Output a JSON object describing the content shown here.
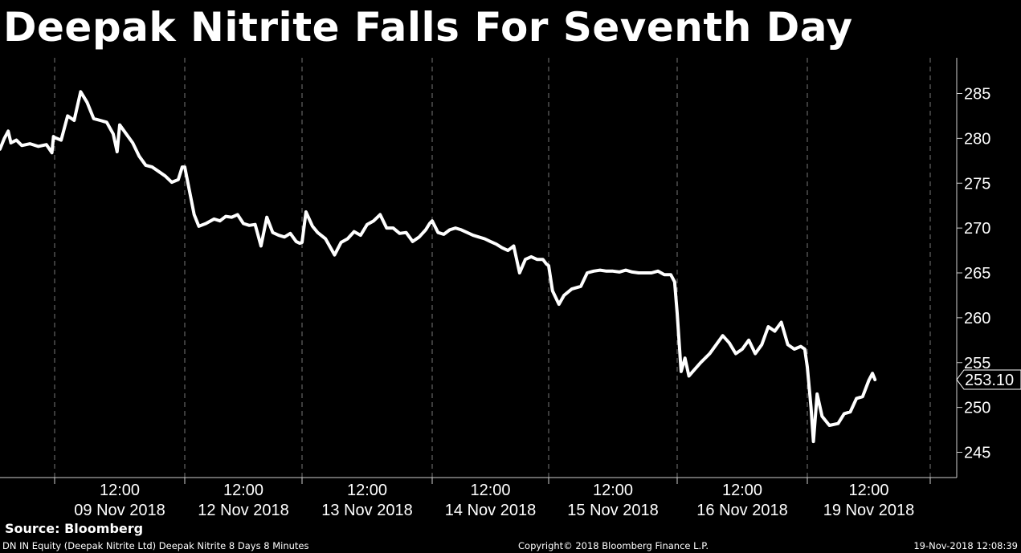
{
  "title": "Deepak Nitrite Falls For Seventh Day",
  "footer": {
    "source": "Source: Bloomberg",
    "security": "DN IN Equity (Deepak Nitrite Ltd) Deepak Nitrite 8 Days 8 Minutes",
    "copyright": "Copyright© 2018 Bloomberg Finance L.P.",
    "timestamp": "19-Nov-2018 12:08:39"
  },
  "colors": {
    "background": "#000000",
    "line": "#ffffff",
    "grid": "#777777"
  },
  "chart_data": {
    "type": "line",
    "title": "Deepak Nitrite Falls For Seventh Day",
    "xlabel": "",
    "ylabel": "",
    "ylim": [
      242,
      290
    ],
    "y_ticks": [
      245,
      250,
      255,
      260,
      265,
      270,
      275,
      280,
      285
    ],
    "y_axis_position": "right",
    "last_price_label": "253.10",
    "x_tick_labels": [
      {
        "time": "12:00",
        "date": "09 Nov 2018"
      },
      {
        "time": "12:00",
        "date": "12 Nov 2018"
      },
      {
        "time": "12:00",
        "date": "13 Nov 2018"
      },
      {
        "time": "12:00",
        "date": "14 Nov 2018"
      },
      {
        "time": "12:00",
        "date": "15 Nov 2018"
      },
      {
        "time": "12:00",
        "date": "16 Nov 2018"
      },
      {
        "time": "12:00",
        "date": "19 Nov 2018"
      }
    ],
    "grid": "vertical dashed at session boundaries",
    "series": [
      {
        "values": [
          [
            0.0,
            278.8
          ],
          [
            0.08,
            280.0
          ],
          [
            0.15,
            280.8
          ],
          [
            0.2,
            279.5
          ],
          [
            0.3,
            279.8
          ],
          [
            0.4,
            279.2
          ],
          [
            0.55,
            279.4
          ],
          [
            0.7,
            279.1
          ],
          [
            0.85,
            279.3
          ],
          [
            0.95,
            278.4
          ],
          [
            0.98,
            280.2
          ],
          [
            1.0,
            280.1
          ],
          [
            1.05,
            279.8
          ],
          [
            1.1,
            282.5
          ],
          [
            1.15,
            282.0
          ],
          [
            1.2,
            285.2
          ],
          [
            1.25,
            284.0
          ],
          [
            1.3,
            282.2
          ],
          [
            1.35,
            282.0
          ],
          [
            1.4,
            281.8
          ],
          [
            1.45,
            280.5
          ],
          [
            1.48,
            278.5
          ],
          [
            1.5,
            281.5
          ],
          [
            1.55,
            280.5
          ],
          [
            1.6,
            279.5
          ],
          [
            1.65,
            278.0
          ],
          [
            1.7,
            277.0
          ],
          [
            1.75,
            276.8
          ],
          [
            1.8,
            276.3
          ],
          [
            1.85,
            275.8
          ],
          [
            1.9,
            275.1
          ],
          [
            1.95,
            275.4
          ],
          [
            1.98,
            276.8
          ],
          [
            2.0,
            276.8
          ],
          [
            2.05,
            273.5
          ],
          [
            2.08,
            271.5
          ],
          [
            2.12,
            270.2
          ],
          [
            2.18,
            270.5
          ],
          [
            2.25,
            271.0
          ],
          [
            2.3,
            270.8
          ],
          [
            2.35,
            271.3
          ],
          [
            2.4,
            271.2
          ],
          [
            2.45,
            271.5
          ],
          [
            2.5,
            270.5
          ],
          [
            2.55,
            270.3
          ],
          [
            2.6,
            270.4
          ],
          [
            2.65,
            268.0
          ],
          [
            2.7,
            271.2
          ],
          [
            2.75,
            269.5
          ],
          [
            2.8,
            269.2
          ],
          [
            2.85,
            269.0
          ],
          [
            2.9,
            269.4
          ],
          [
            2.95,
            268.5
          ],
          [
            2.98,
            268.3
          ],
          [
            3.0,
            268.4
          ],
          [
            3.03,
            271.8
          ],
          [
            3.08,
            270.2
          ],
          [
            3.12,
            269.5
          ],
          [
            3.18,
            268.8
          ],
          [
            3.25,
            267.0
          ],
          [
            3.3,
            268.4
          ],
          [
            3.35,
            268.8
          ],
          [
            3.4,
            269.6
          ],
          [
            3.45,
            269.2
          ],
          [
            3.5,
            270.4
          ],
          [
            3.55,
            270.8
          ],
          [
            3.6,
            271.5
          ],
          [
            3.65,
            270.0
          ],
          [
            3.7,
            270.0
          ],
          [
            3.75,
            269.4
          ],
          [
            3.8,
            269.5
          ],
          [
            3.85,
            268.5
          ],
          [
            3.9,
            269.0
          ],
          [
            3.95,
            269.8
          ],
          [
            3.98,
            270.5
          ],
          [
            4.0,
            270.8
          ],
          [
            4.05,
            269.5
          ],
          [
            4.1,
            269.3
          ],
          [
            4.15,
            269.8
          ],
          [
            4.2,
            270.0
          ],
          [
            4.25,
            269.8
          ],
          [
            4.3,
            269.5
          ],
          [
            4.35,
            269.2
          ],
          [
            4.4,
            269.0
          ],
          [
            4.45,
            268.8
          ],
          [
            4.5,
            268.5
          ],
          [
            4.55,
            268.2
          ],
          [
            4.6,
            267.8
          ],
          [
            4.65,
            267.5
          ],
          [
            4.7,
            268.0
          ],
          [
            4.75,
            265.0
          ],
          [
            4.8,
            266.5
          ],
          [
            4.85,
            266.8
          ],
          [
            4.9,
            266.5
          ],
          [
            4.95,
            266.5
          ],
          [
            4.98,
            266.0
          ],
          [
            5.0,
            265.8
          ],
          [
            5.03,
            263.0
          ],
          [
            5.08,
            261.5
          ],
          [
            5.12,
            262.5
          ],
          [
            5.18,
            263.2
          ],
          [
            5.25,
            263.5
          ],
          [
            5.3,
            265.0
          ],
          [
            5.35,
            265.2
          ],
          [
            5.4,
            265.3
          ],
          [
            5.45,
            265.2
          ],
          [
            5.5,
            265.2
          ],
          [
            5.55,
            265.1
          ],
          [
            5.6,
            265.3
          ],
          [
            5.65,
            265.1
          ],
          [
            5.7,
            265.0
          ],
          [
            5.75,
            265.0
          ],
          [
            5.8,
            265.0
          ],
          [
            5.85,
            265.2
          ],
          [
            5.9,
            264.8
          ],
          [
            5.95,
            264.8
          ],
          [
            5.98,
            264.0
          ],
          [
            6.0,
            260.5
          ],
          [
            6.03,
            254.0
          ],
          [
            6.06,
            255.5
          ],
          [
            6.09,
            253.5
          ],
          [
            6.12,
            254.0
          ],
          [
            6.18,
            255.0
          ],
          [
            6.25,
            256.0
          ],
          [
            6.3,
            257.0
          ],
          [
            6.35,
            258.0
          ],
          [
            6.4,
            257.2
          ],
          [
            6.45,
            256.0
          ],
          [
            6.5,
            256.5
          ],
          [
            6.55,
            257.5
          ],
          [
            6.6,
            256.0
          ],
          [
            6.65,
            257.0
          ],
          [
            6.7,
            259.0
          ],
          [
            6.75,
            258.5
          ],
          [
            6.8,
            259.5
          ],
          [
            6.85,
            257.0
          ],
          [
            6.9,
            256.5
          ],
          [
            6.95,
            256.8
          ],
          [
            6.98,
            256.5
          ],
          [
            7.0,
            254.5
          ],
          [
            7.03,
            250.0
          ],
          [
            7.05,
            246.2
          ],
          [
            7.08,
            251.5
          ],
          [
            7.12,
            249.0
          ],
          [
            7.18,
            248.0
          ],
          [
            7.25,
            248.2
          ],
          [
            7.3,
            249.3
          ],
          [
            7.35,
            249.5
          ],
          [
            7.4,
            251.0
          ],
          [
            7.45,
            251.2
          ],
          [
            7.5,
            253.0
          ],
          [
            7.53,
            253.8
          ],
          [
            7.55,
            253.1
          ]
        ]
      }
    ]
  }
}
